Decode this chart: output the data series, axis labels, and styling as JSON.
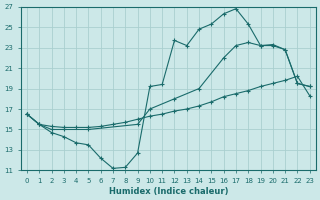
{
  "xlabel": "Humidex (Indice chaleur)",
  "bg_color": "#cce8e8",
  "grid_color": "#aacfcf",
  "line_color": "#1a6b6b",
  "xlim": [
    -0.5,
    23.5
  ],
  "ylim": [
    11,
    27
  ],
  "xticks": [
    0,
    1,
    2,
    3,
    4,
    5,
    6,
    7,
    8,
    9,
    10,
    11,
    12,
    13,
    14,
    15,
    16,
    17,
    18,
    19,
    20,
    21,
    22,
    23
  ],
  "yticks": [
    11,
    13,
    15,
    17,
    19,
    21,
    23,
    25,
    27
  ],
  "line1_x": [
    0,
    1,
    2,
    3,
    4,
    5,
    6,
    7,
    8,
    9,
    10,
    11,
    12,
    13,
    14,
    15,
    16,
    17,
    18,
    19,
    20,
    21,
    22,
    23
  ],
  "line1_y": [
    16.5,
    15.5,
    14.7,
    14.3,
    13.7,
    13.5,
    12.2,
    11.2,
    11.3,
    12.7,
    19.2,
    19.4,
    23.7,
    23.2,
    24.8,
    25.3,
    26.3,
    26.8,
    25.3,
    23.2,
    23.3,
    22.8,
    19.5,
    19.2
  ],
  "line2_x": [
    0,
    1,
    2,
    3,
    5,
    9,
    10,
    12,
    14,
    16,
    17,
    18,
    19,
    20,
    21,
    22,
    23
  ],
  "line2_y": [
    16.5,
    15.5,
    15.0,
    15.0,
    15.0,
    15.5,
    17.0,
    18.0,
    19.0,
    22.0,
    23.2,
    23.5,
    23.2,
    23.2,
    22.8,
    19.5,
    19.2
  ],
  "line3_x": [
    0,
    1,
    2,
    3,
    4,
    5,
    6,
    7,
    8,
    9,
    10,
    11,
    12,
    13,
    14,
    15,
    16,
    17,
    18,
    19,
    20,
    21,
    22,
    23
  ],
  "line3_y": [
    16.5,
    15.5,
    15.3,
    15.2,
    15.2,
    15.2,
    15.3,
    15.5,
    15.7,
    16.0,
    16.3,
    16.5,
    16.8,
    17.0,
    17.3,
    17.7,
    18.2,
    18.5,
    18.8,
    19.2,
    19.5,
    19.8,
    20.2,
    18.3
  ]
}
